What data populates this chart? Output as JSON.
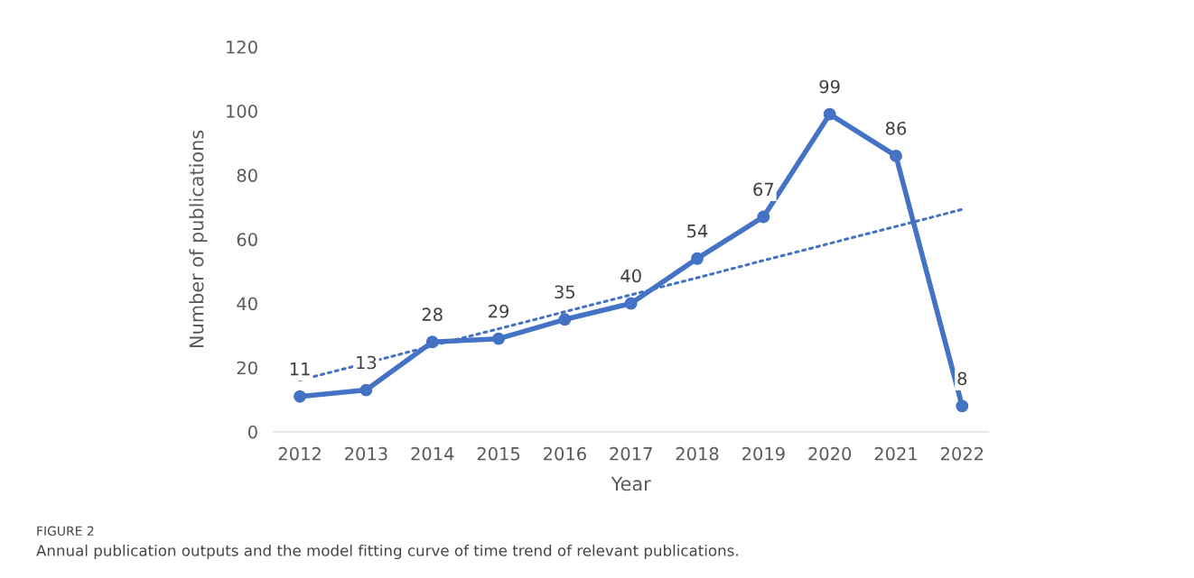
{
  "chart_data": {
    "type": "line",
    "xlabel": "Year",
    "ylabel": "Number of publications",
    "categories": [
      "2012",
      "2013",
      "2014",
      "2015",
      "2016",
      "2017",
      "2018",
      "2019",
      "2020",
      "2021",
      "2022"
    ],
    "series": [
      {
        "color": "#4472c4",
        "values": [
          11,
          13,
          28,
          29,
          35,
          40,
          54,
          67,
          99,
          86,
          8
        ],
        "value_labels": [
          "11",
          "13",
          "28",
          "29",
          "35",
          "40",
          "54",
          "67",
          "99",
          "86",
          "8"
        ],
        "marker": "circle",
        "line_style": "solid"
      },
      {
        "type": "line",
        "color": "#4472c4",
        "values": [
          16.1,
          21.4,
          26.8,
          32.1,
          37.4,
          42.7,
          48.0,
          53.4,
          58.7,
          64.0,
          69.3
        ],
        "marker": "none",
        "line_style": "dotted"
      }
    ],
    "ylim": [
      0,
      120
    ],
    "yticks": [
      0,
      20,
      40,
      60,
      80,
      100,
      120
    ],
    "grid": false,
    "legend": false,
    "annotations": [
      "FIGURE 2",
      "Annual publication outputs and the model fitting curve of time trend of relevant publications."
    ]
  }
}
